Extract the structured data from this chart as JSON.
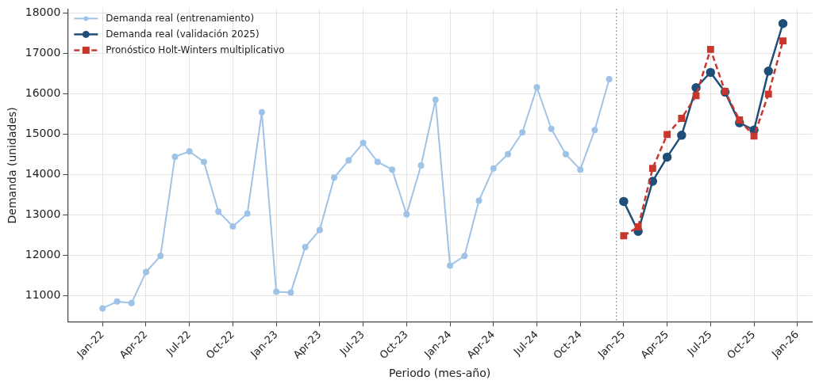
{
  "chart_data": {
    "type": "line",
    "xlabel": "Periodo (mes-año)",
    "ylabel": "Demanda (unidades)",
    "series": [
      {
        "name": "Demanda real (entrenamiento)",
        "color": "#9ec3e6",
        "marker": "circle",
        "line_style": "solid",
        "x": [
          "2022-01",
          "2022-02",
          "2022-03",
          "2022-04",
          "2022-05",
          "2022-06",
          "2022-07",
          "2022-08",
          "2022-09",
          "2022-10",
          "2022-11",
          "2022-12",
          "2023-01",
          "2023-02",
          "2023-03",
          "2023-04",
          "2023-05",
          "2023-06",
          "2023-07",
          "2023-08",
          "2023-09",
          "2023-10",
          "2023-11",
          "2023-12",
          "2024-01",
          "2024-02",
          "2024-03",
          "2024-04",
          "2024-05",
          "2024-06",
          "2024-07",
          "2024-08",
          "2024-09",
          "2024-10",
          "2024-11",
          "2024-12"
        ],
        "values": [
          10680,
          10850,
          10810,
          11580,
          11980,
          14440,
          14570,
          14310,
          13080,
          12710,
          13030,
          15540,
          11090,
          11070,
          12200,
          12620,
          13920,
          14350,
          14780,
          14310,
          14120,
          13010,
          14220,
          15850,
          11740,
          11980,
          13350,
          14150,
          14500,
          15040,
          16160,
          15130,
          14500,
          14120,
          15100,
          16360
        ]
      },
      {
        "name": "Demanda real (validación 2025)",
        "color": "#1f4e79",
        "marker": "circle",
        "line_style": "solid",
        "x": [
          "2025-01",
          "2025-02",
          "2025-03",
          "2025-04",
          "2025-05",
          "2025-06",
          "2025-07",
          "2025-08",
          "2025-09",
          "2025-10",
          "2025-11",
          "2025-12"
        ],
        "values": [
          13330,
          12590,
          13830,
          14430,
          14970,
          16150,
          16530,
          16040,
          15280,
          15100,
          16560,
          17740
        ]
      },
      {
        "name": "Pronóstico Holt-Winters multiplicativo",
        "color": "#c8372d",
        "marker": "square",
        "line_style": "dashed",
        "x": [
          "2025-01",
          "2025-02",
          "2025-03",
          "2025-04",
          "2025-05",
          "2025-06",
          "2025-07",
          "2025-08",
          "2025-09",
          "2025-10",
          "2025-11",
          "2025-12"
        ],
        "values": [
          12480,
          12700,
          14150,
          14990,
          15390,
          15950,
          17100,
          16060,
          15350,
          14950,
          15990,
          17310
        ]
      }
    ],
    "xlim": [
      "2021-10-19",
      "2026-02-01"
    ],
    "xticks": [
      {
        "value": "2022-01",
        "label": "Jan-22"
      },
      {
        "value": "2022-04",
        "label": "Apr-22"
      },
      {
        "value": "2022-07",
        "label": "Jul-22"
      },
      {
        "value": "2022-10",
        "label": "Oct-22"
      },
      {
        "value": "2023-01",
        "label": "Jan-23"
      },
      {
        "value": "2023-04",
        "label": "Apr-23"
      },
      {
        "value": "2023-07",
        "label": "Jul-23"
      },
      {
        "value": "2023-10",
        "label": "Oct-23"
      },
      {
        "value": "2024-01",
        "label": "Jan-24"
      },
      {
        "value": "2024-04",
        "label": "Apr-24"
      },
      {
        "value": "2024-07",
        "label": "Jul-24"
      },
      {
        "value": "2024-10",
        "label": "Oct-24"
      },
      {
        "value": "2025-01",
        "label": "Jan-25"
      },
      {
        "value": "2025-04",
        "label": "Apr-25"
      },
      {
        "value": "2025-07",
        "label": "Jul-25"
      },
      {
        "value": "2025-10",
        "label": "Oct-25"
      },
      {
        "value": "2026-01",
        "label": "Jan-26"
      }
    ],
    "ylim": [
      10350,
      18100
    ],
    "yticks": [
      11000,
      12000,
      13000,
      14000,
      15000,
      16000,
      17000,
      18000
    ],
    "ref_lines": [
      {
        "axis": "x",
        "value": "2024-12-16",
        "color": "#888888",
        "line_style": "dotted"
      }
    ],
    "grid": true,
    "legend": "top left"
  }
}
